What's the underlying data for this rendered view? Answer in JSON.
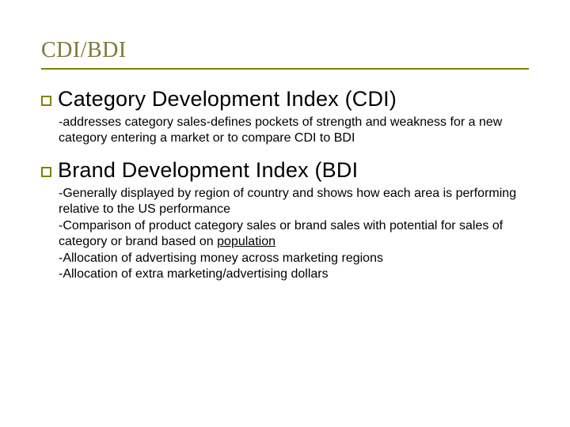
{
  "colors": {
    "title_color": "#7c7a3a",
    "underline_color": "#808000",
    "bullet_border": "#808000",
    "heading_color": "#000000",
    "body_color": "#000000",
    "background": "#ffffff"
  },
  "typography": {
    "title_font": "Georgia, serif",
    "title_fontsize": 28,
    "heading_fontsize": 27,
    "body_fontsize": 16,
    "body_font": "Verdana, sans-serif"
  },
  "title": "CDI/BDI",
  "items": [
    {
      "heading": "Category Development Index (CDI)",
      "body_lines": [
        "-addresses category sales-defines pockets of strength and weakness for a new category entering a market or to compare CDI to BDI"
      ]
    },
    {
      "heading": "Brand Development Index (BDI",
      "body_lines": [
        "-Generally displayed by region of country and shows how each area is performing relative to the US performance",
        "-Comparison of product category sales or brand sales with potential for sales of category or brand based on <u>population</u>",
        "-Allocation of advertising money across marketing regions",
        "-Allocation of extra marketing/advertising dollars"
      ]
    }
  ]
}
